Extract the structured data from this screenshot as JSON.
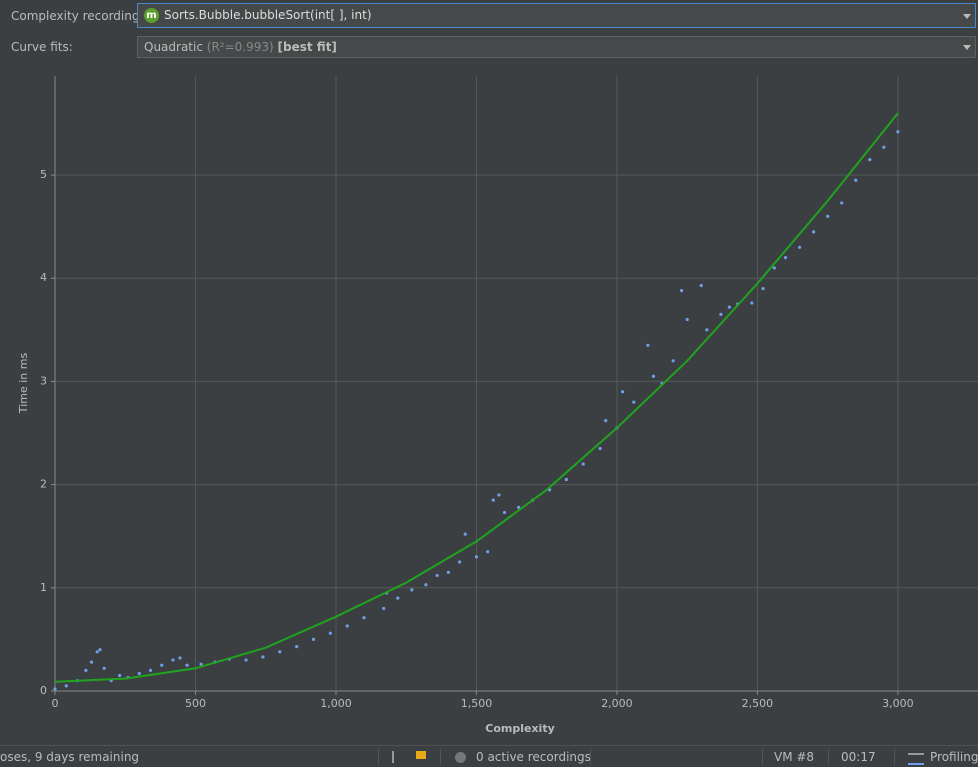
{
  "toolbar": {
    "recording_label": "Complexity recording:",
    "recording_icon": "m",
    "recording_value": "Sorts.Bubble.bubbleSort(int[ ], int)",
    "fits_label": "Curve fits:",
    "fit_name": "Quadratic",
    "fit_r2": "(R²=0.993)",
    "fit_tag": "[best fit]"
  },
  "chart_data": {
    "type": "scatter",
    "ylabel": "Time in ms",
    "xlabel": "Complexity",
    "xlim": [
      0,
      3285
    ],
    "ylim": [
      0,
      5.96
    ],
    "xticks": [
      0,
      500,
      {
        "value": 1000,
        "label": "1,000"
      },
      {
        "value": 1500,
        "label": "1,500"
      },
      {
        "value": 2000,
        "label": "2,000"
      },
      {
        "value": 2500,
        "label": "2,500"
      },
      {
        "value": 3000,
        "label": "3,000"
      }
    ],
    "yticks": [
      0,
      1,
      2,
      3,
      4,
      5
    ],
    "grid": true,
    "series": [
      {
        "type": "scatter",
        "color": "#6f9fe6",
        "x": [
          0,
          40,
          80,
          110,
          130,
          150,
          160,
          175,
          200,
          230,
          260,
          300,
          340,
          380,
          420,
          445,
          470,
          520,
          570,
          620,
          680,
          740,
          800,
          860,
          920,
          980,
          1040,
          1100,
          1170,
          1180,
          1220,
          1270,
          1320,
          1360,
          1400,
          1440,
          1460,
          1500,
          1540,
          1560,
          1580,
          1600,
          1650,
          1700,
          1760,
          1820,
          1880,
          1940,
          1960,
          2000,
          2020,
          2060,
          2110,
          2130,
          2160,
          2200,
          2230,
          2250,
          2300,
          2320,
          2370,
          2400,
          2430,
          2480,
          2520,
          2560,
          2600,
          2650,
          2700,
          2750,
          2800,
          2850,
          2900,
          2950,
          3000
        ],
        "values": [
          0.02,
          0.05,
          0.1,
          0.2,
          0.28,
          0.38,
          0.4,
          0.22,
          0.1,
          0.15,
          0.13,
          0.17,
          0.2,
          0.25,
          0.3,
          0.32,
          0.25,
          0.26,
          0.28,
          0.31,
          0.3,
          0.33,
          0.38,
          0.43,
          0.5,
          0.56,
          0.63,
          0.71,
          0.8,
          0.95,
          0.9,
          0.98,
          1.03,
          1.12,
          1.15,
          1.25,
          1.52,
          1.3,
          1.35,
          1.85,
          1.9,
          1.73,
          1.78,
          1.85,
          1.95,
          2.05,
          2.2,
          2.35,
          2.62,
          2.55,
          2.9,
          2.8,
          3.35,
          3.05,
          2.98,
          3.2,
          3.88,
          3.6,
          3.93,
          3.5,
          3.65,
          3.72,
          3.75,
          3.76,
          3.9,
          4.1,
          4.2,
          4.3,
          4.45,
          4.6,
          4.73,
          4.95,
          5.15,
          5.27,
          5.42
        ]
      },
      {
        "type": "line",
        "color": "#1fa31f",
        "x": [
          0,
          250,
          500,
          750,
          1000,
          1250,
          1500,
          1750,
          2000,
          2250,
          2500,
          2750,
          3000
        ],
        "values": [
          0.09,
          0.12,
          0.22,
          0.42,
          0.72,
          1.05,
          1.45,
          1.95,
          2.55,
          3.2,
          3.95,
          4.75,
          5.6
        ]
      }
    ]
  },
  "status_bar": {
    "message": "oses, 9 days remaining",
    "recordings": "0 active recordings",
    "vm": "VM #8",
    "time": "00:17",
    "mode": "Profiling"
  }
}
